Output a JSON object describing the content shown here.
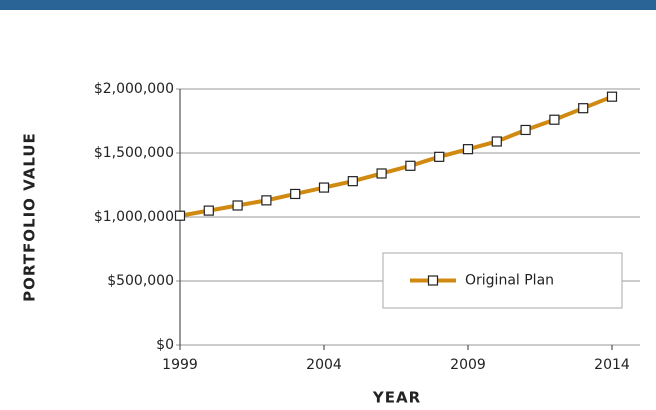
{
  "chart_data": {
    "type": "line",
    "x_label": "YEAR",
    "y_label": "PORTFOLIO VALUE",
    "x": [
      1999,
      2000,
      2001,
      2002,
      2003,
      2004,
      2005,
      2006,
      2007,
      2008,
      2009,
      2010,
      2011,
      2012,
      2013,
      2014
    ],
    "series": [
      {
        "name": "Original Plan",
        "color": "#d08a12",
        "values": [
          1010000,
          1050000,
          1090000,
          1130000,
          1180000,
          1230000,
          1280000,
          1340000,
          1400000,
          1470000,
          1530000,
          1590000,
          1680000,
          1760000,
          1850000,
          1940000
        ]
      }
    ],
    "xlim": [
      1999,
      2014
    ],
    "xticks": [
      1999,
      2004,
      2009,
      2014
    ],
    "ylim": [
      0,
      2000000
    ],
    "yticks": [
      {
        "value": 0,
        "label": "$0"
      },
      {
        "value": 500000,
        "label": "$500,000"
      },
      {
        "value": 1000000,
        "label": "$1,000,000"
      },
      {
        "value": 1500000,
        "label": "$1,500,000"
      },
      {
        "value": 2000000,
        "label": "$2,000,000"
      }
    ],
    "grid": true,
    "legend": "lower right"
  }
}
